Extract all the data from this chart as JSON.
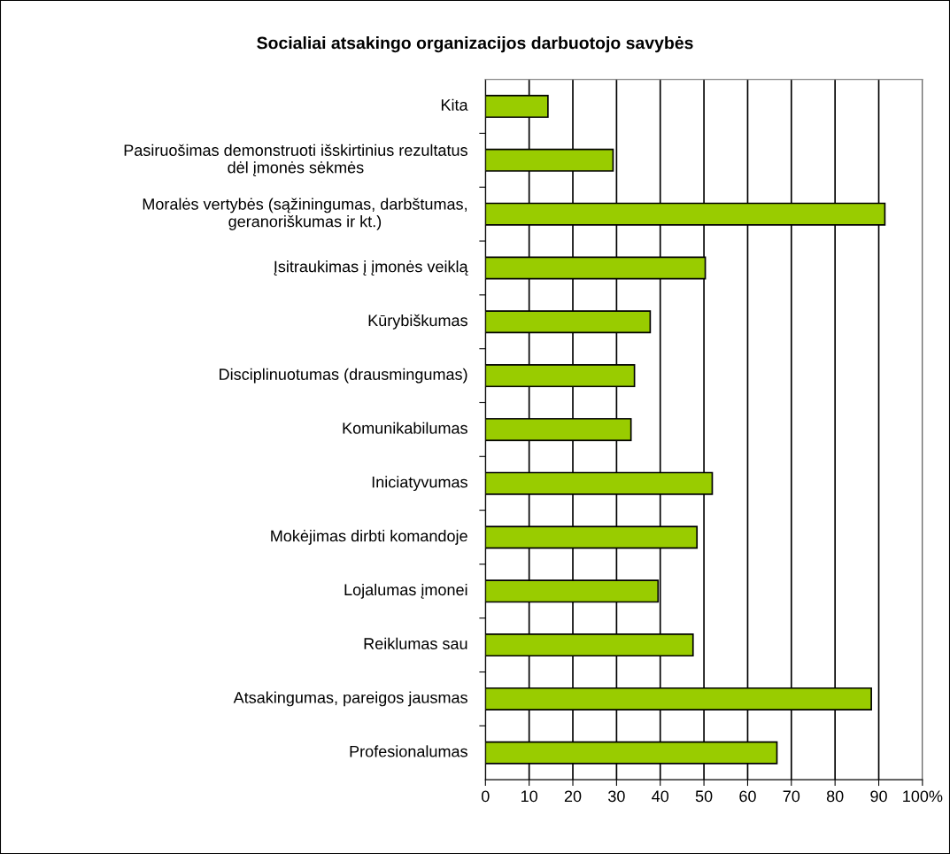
{
  "chart_data": {
    "type": "bar",
    "orientation": "horizontal",
    "title": "Socialiai atsakingo organizacijos darbuotojo savybės",
    "categories": [
      "Kita",
      "Pasiruošimas demonstruoti išskirtinius rezultatus\ndėl įmonės sėkmės",
      "Moralės vertybės (sąžiningumas, darbštumas,\ngeranoriškumas ir kt.)",
      "Įsitraukimas į įmonės veiklą",
      "Kūrybiškumas",
      "Disciplinuotumas (drausmingumas)",
      "Komunikabilumas",
      "Iniciatyvumas",
      "Mokėjimas dirbti komandoje",
      "Lojalumas įmonei",
      "Reiklumas sau",
      "Atsakingumas, pareigos jausmas",
      "Profesionalumas"
    ],
    "values": [
      14.3,
      29.2,
      91.4,
      50.3,
      37.7,
      34.1,
      33.3,
      51.9,
      48.4,
      39.5,
      47.5,
      88.3,
      66.7
    ],
    "color": "#99cc00",
    "xlim": [
      0,
      100
    ],
    "xticks": [
      0,
      10,
      20,
      30,
      40,
      50,
      60,
      70,
      80,
      90,
      {
        "value": 100,
        "label": "100%"
      }
    ],
    "grid": "x"
  }
}
